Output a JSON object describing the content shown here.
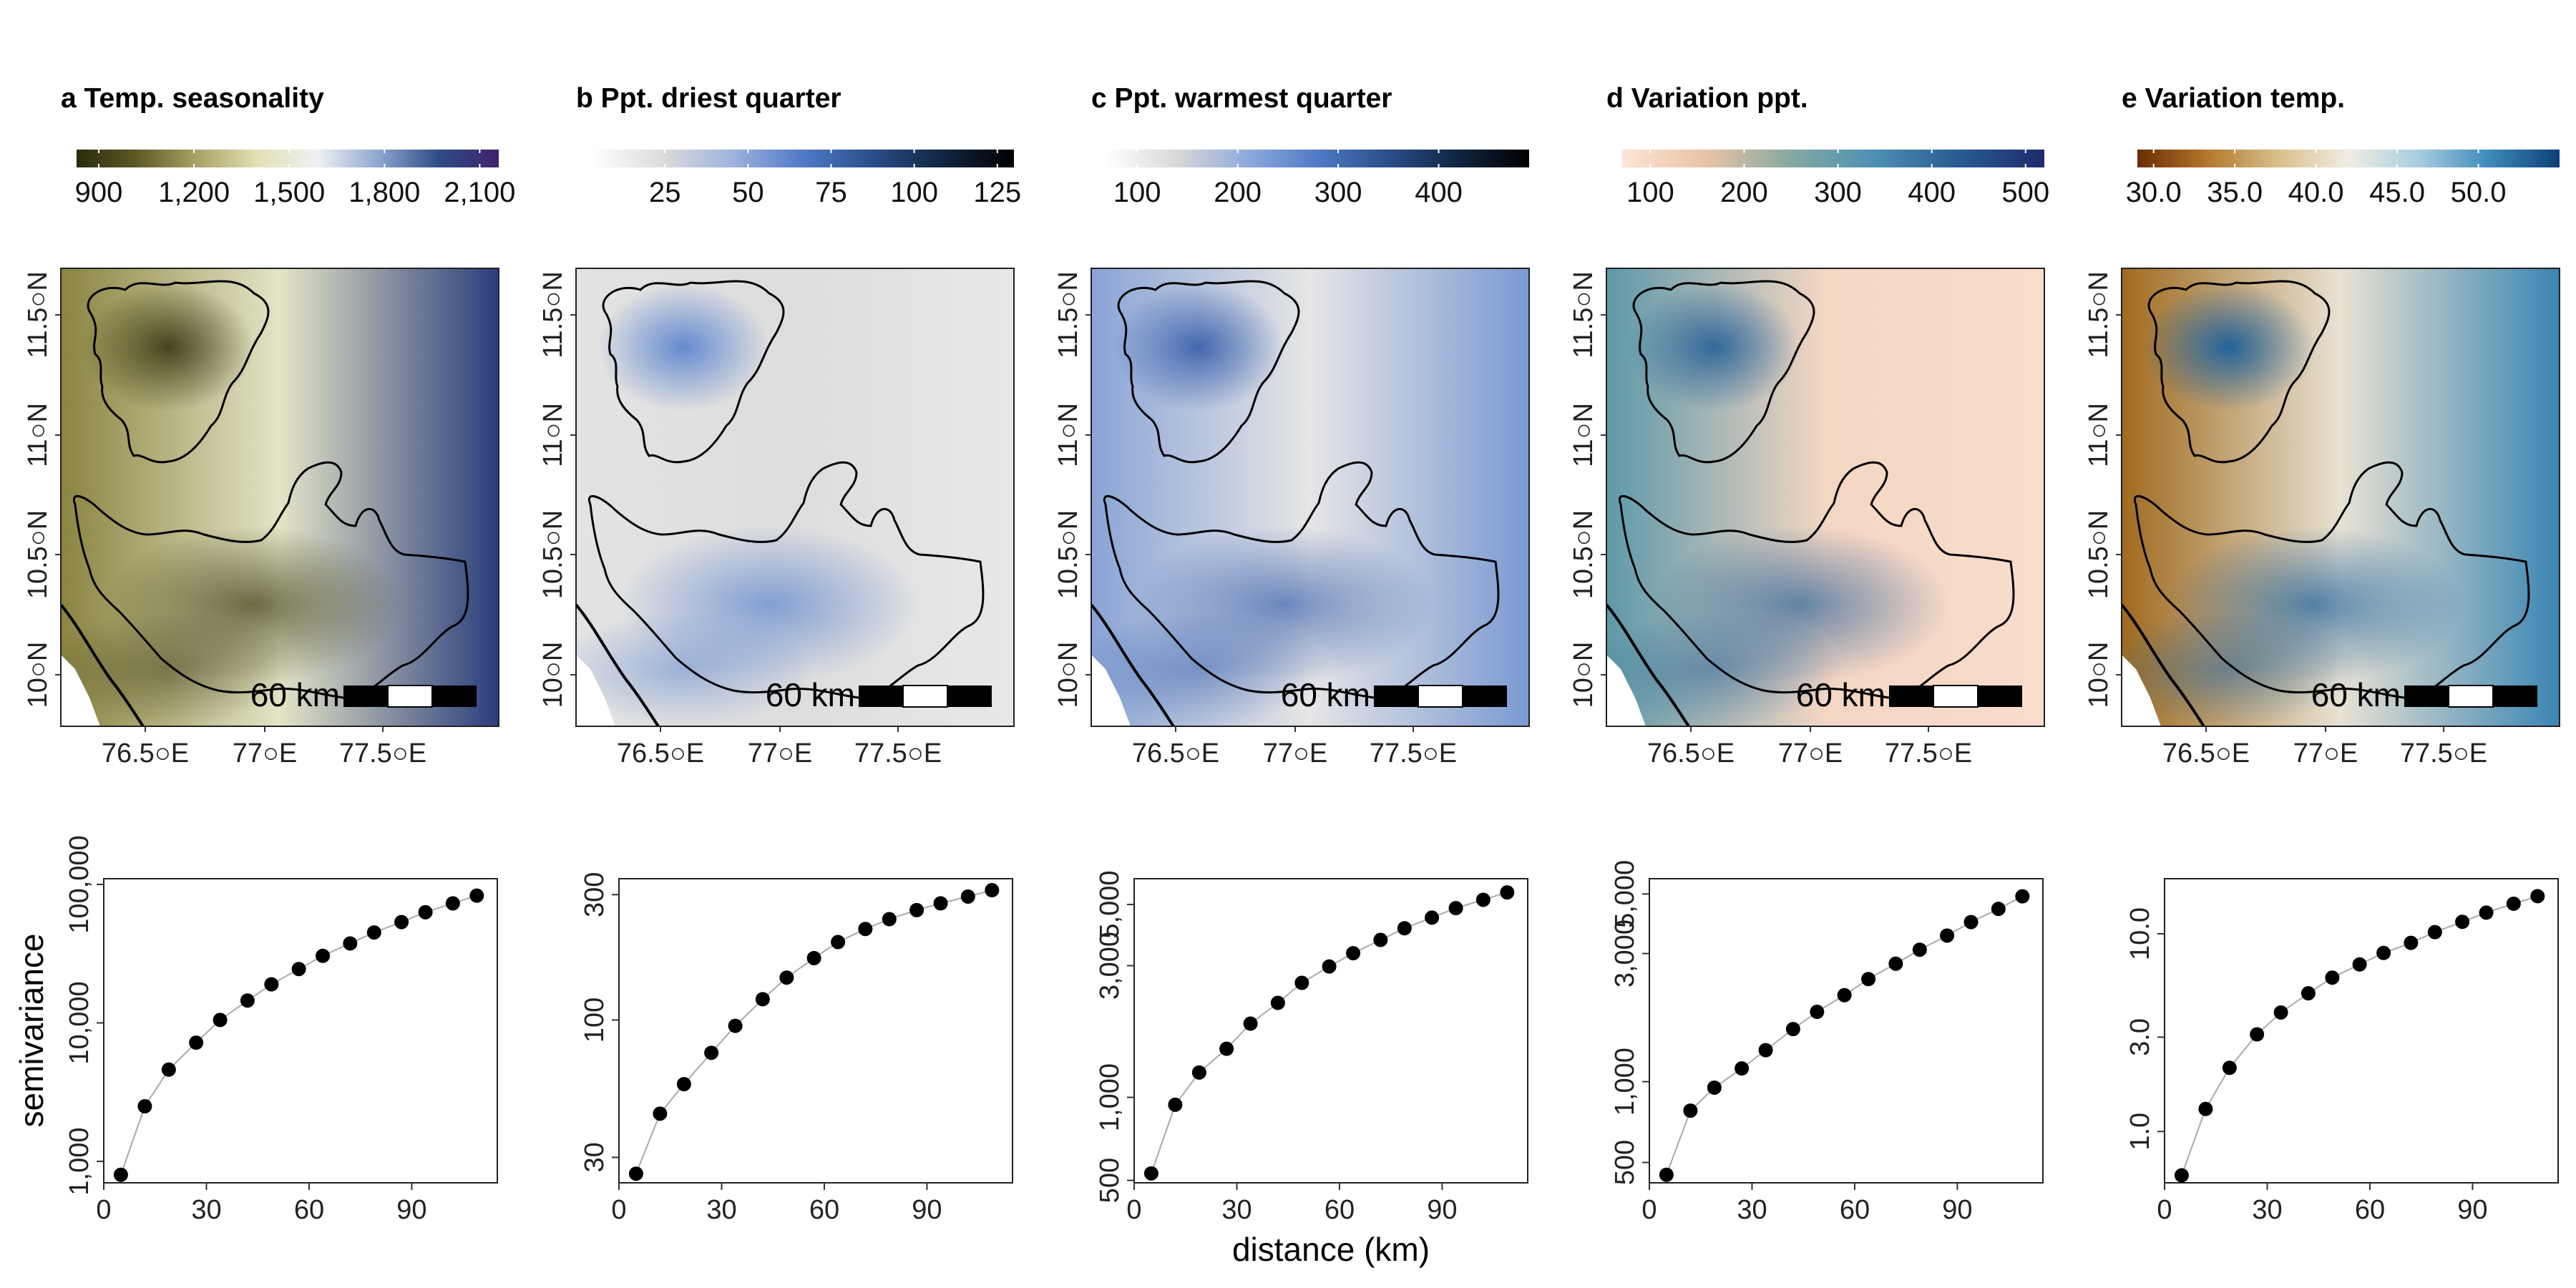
{
  "figure": {
    "xlabel": "distance (km)",
    "ylabel": "semivariance",
    "scale_bar_label": "60 km",
    "map_lon_ticks": [
      "76.5○E",
      "77○E",
      "77.5○E"
    ],
    "map_lat_ticks": [
      "10○N",
      "10.5○N",
      "11○N",
      "11.5○N"
    ]
  },
  "panels": [
    {
      "letter": "a",
      "title": "a Temp. seasonality",
      "colorbar": {
        "ticks": [
          "900",
          "1,200",
          "1,500",
          "1,800",
          "2,100"
        ],
        "tick_values": [
          900,
          1200,
          1500,
          1800,
          2100
        ],
        "range": [
          830,
          2160
        ],
        "colors": [
          "#2a2a0c",
          "#5d5a25",
          "#a7a466",
          "#e3e0b4",
          "#eef1f3",
          "#8ea7cf",
          "#2e4d85",
          "#40226a"
        ]
      },
      "map_colors": {
        "west": "#8a8440",
        "mid": "#e4e4c6",
        "east": "#293d7c",
        "blob": "#403e17"
      }
    },
    {
      "letter": "b",
      "title": "b Ppt. driest quarter",
      "colorbar": {
        "ticks": [
          "25",
          "50",
          "75",
          "100",
          "125"
        ],
        "tick_values": [
          25,
          50,
          75,
          100,
          125
        ],
        "range": [
          3,
          130
        ],
        "colors": [
          "#ffffff",
          "#dcdcdc",
          "#9fb3dd",
          "#4f7ac6",
          "#294e8a",
          "#0f2540",
          "#000000"
        ]
      },
      "map_colors": {
        "west": "#e3e3e3",
        "mid": "#dddddd",
        "east": "#e8e8e8",
        "blob": "#5d86cf"
      }
    },
    {
      "letter": "c",
      "title": "c Ppt. warmest quarter",
      "colorbar": {
        "ticks": [
          "100",
          "200",
          "300",
          "400"
        ],
        "tick_values": [
          100,
          200,
          300,
          400
        ],
        "range": [
          70,
          490
        ],
        "colors": [
          "#ffffff",
          "#d8d8d8",
          "#8eaadd",
          "#4f7ac6",
          "#294e8a",
          "#0f2540",
          "#000000"
        ]
      },
      "map_colors": {
        "west": "#8aa4d6",
        "mid": "#e6e6e6",
        "east": "#7a99d2",
        "blob": "#3d63ad"
      }
    },
    {
      "letter": "d",
      "title": "d Variation ppt.",
      "colorbar": {
        "ticks": [
          "100",
          "200",
          "300",
          "400",
          "500"
        ],
        "tick_values": [
          100,
          200,
          300,
          400,
          500
        ],
        "range": [
          70,
          520
        ],
        "colors": [
          "#fde5d6",
          "#e9c3a4",
          "#84a9a2",
          "#4d8fb4",
          "#275b91",
          "#1f2a6e"
        ]
      },
      "map_colors": {
        "west": "#5d99a9",
        "mid": "#f4d6c3",
        "east": "#fadccc",
        "blob": "#2d6499"
      }
    },
    {
      "letter": "e",
      "title": "e Variation temp.",
      "colorbar": {
        "ticks": [
          "30.0",
          "35.0",
          "40.0",
          "45.0",
          "50.0"
        ],
        "tick_values": [
          30,
          35,
          40,
          45,
          50
        ],
        "range": [
          29,
          55
        ],
        "colors": [
          "#6b2d02",
          "#b2782b",
          "#d9c08a",
          "#f1ede4",
          "#a7cde0",
          "#3d8bb9",
          "#0c3f79"
        ]
      },
      "map_colors": {
        "west": "#a06a1f",
        "mid": "#e8e2d3",
        "east": "#3b85b3",
        "blob": "#1a5f9c"
      }
    }
  ],
  "chart_data": [
    {
      "type": "scatter",
      "title": "a Temp. seasonality",
      "xlabel": "distance (km)",
      "ylabel": "semivariance",
      "yscale": "log",
      "xlim": [
        0,
        115
      ],
      "ylim": [
        700,
        110000
      ],
      "x_ticks": [
        0,
        30,
        60,
        90
      ],
      "x_tick_labels": [
        "0",
        "30",
        "60",
        "90"
      ],
      "y_ticks": [
        1000,
        10000,
        100000
      ],
      "y_tick_labels": [
        "1,000",
        "10,000",
        "100,000"
      ],
      "x": [
        5,
        12,
        19,
        27,
        34,
        42,
        49,
        57,
        64,
        72,
        79,
        87,
        94,
        102,
        109
      ],
      "y": [
        800,
        2500,
        4600,
        7200,
        10500,
        14500,
        19000,
        24500,
        30500,
        37500,
        45000,
        53500,
        63000,
        73000,
        83000
      ]
    },
    {
      "type": "scatter",
      "title": "b Ppt. driest quarter",
      "xlabel": "distance (km)",
      "ylabel": "",
      "yscale": "log",
      "xlim": [
        0,
        115
      ],
      "ylim": [
        24,
        345
      ],
      "x_ticks": [
        0,
        30,
        60,
        90
      ],
      "x_tick_labels": [
        "0",
        "30",
        "60",
        "90"
      ],
      "y_ticks": [
        30,
        100,
        300
      ],
      "y_tick_labels": [
        "30",
        "100",
        "300"
      ],
      "x": [
        5,
        12,
        19,
        27,
        34,
        42,
        49,
        57,
        64,
        72,
        79,
        87,
        94,
        102,
        109
      ],
      "y": [
        26,
        44,
        57,
        75,
        95,
        120,
        145,
        172,
        198,
        222,
        242,
        262,
        278,
        295,
        312
      ]
    },
    {
      "type": "scatter",
      "title": "c Ppt. warmest quarter",
      "xlabel": "distance (km)",
      "ylabel": "",
      "yscale": "log",
      "xlim": [
        0,
        115
      ],
      "ylim": [
        490,
        6200
      ],
      "x_ticks": [
        0,
        30,
        60,
        90
      ],
      "x_tick_labels": [
        "0",
        "30",
        "60",
        "90"
      ],
      "y_ticks": [
        500,
        1000,
        3000,
        5000
      ],
      "y_tick_labels": [
        "500",
        "1,000",
        "3,000",
        "5,000"
      ],
      "x": [
        5,
        12,
        19,
        27,
        34,
        42,
        49,
        57,
        64,
        72,
        79,
        87,
        94,
        102,
        109
      ],
      "y": [
        530,
        940,
        1230,
        1500,
        1850,
        2200,
        2600,
        2980,
        3330,
        3720,
        4100,
        4480,
        4850,
        5200,
        5530
      ]
    },
    {
      "type": "scatter",
      "title": "d Variation ppt.",
      "xlabel": "distance (km)",
      "ylabel": "",
      "yscale": "log",
      "xlim": [
        0,
        115
      ],
      "ylim": [
        420,
        5700
      ],
      "x_ticks": [
        0,
        30,
        60,
        90
      ],
      "x_tick_labels": [
        "0",
        "30",
        "60",
        "90"
      ],
      "y_ticks": [
        500,
        1000,
        3000,
        5000
      ],
      "y_tick_labels": [
        "500",
        "1,000",
        "3,000",
        "5,000"
      ],
      "x": [
        5,
        12,
        19,
        27,
        34,
        42,
        49,
        57,
        64,
        72,
        79,
        87,
        94,
        102,
        109
      ],
      "y": [
        450,
        780,
        950,
        1120,
        1310,
        1570,
        1820,
        2100,
        2410,
        2750,
        3100,
        3500,
        3930,
        4400,
        4900
      ]
    },
    {
      "type": "scatter",
      "title": "e Variation temp.",
      "xlabel": "distance (km)",
      "ylabel": "",
      "yscale": "log",
      "xlim": [
        0,
        115
      ],
      "ylim": [
        0.55,
        19
      ],
      "x_ticks": [
        0,
        30,
        60,
        90
      ],
      "x_tick_labels": [
        "0",
        "30",
        "60",
        "90"
      ],
      "y_ticks": [
        1,
        3,
        10
      ],
      "y_tick_labels": [
        "1.0",
        "3.0",
        "10.0"
      ],
      "x": [
        5,
        12,
        19,
        27,
        34,
        42,
        49,
        57,
        64,
        72,
        79,
        87,
        94,
        102,
        109
      ],
      "y": [
        0.6,
        1.3,
        2.1,
        3.1,
        4.0,
        5.0,
        6.0,
        7.0,
        8.0,
        9.0,
        10.2,
        11.5,
        12.8,
        14.2,
        15.5
      ]
    }
  ]
}
